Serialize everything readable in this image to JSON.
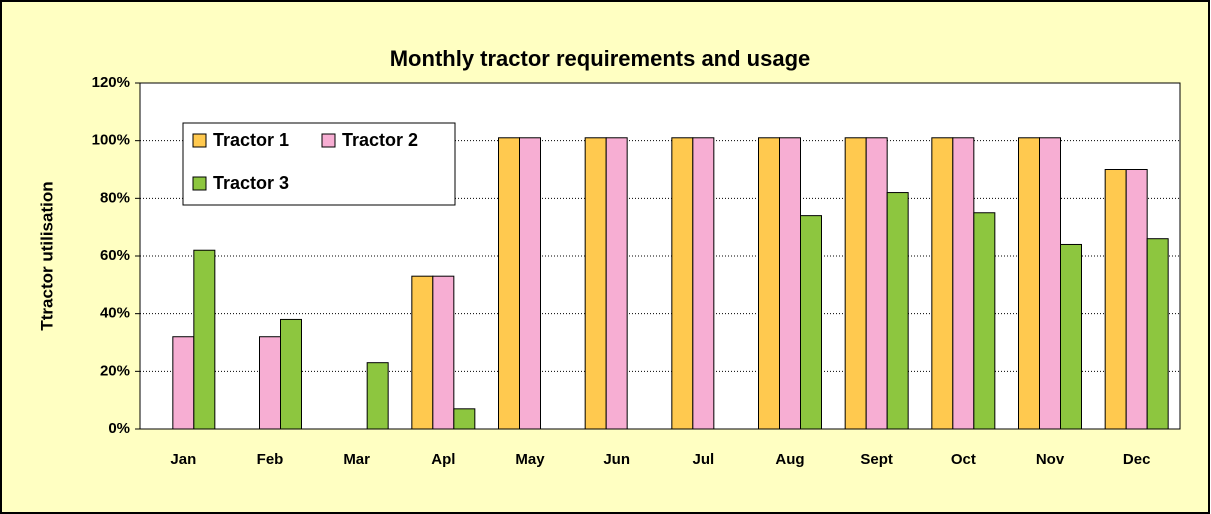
{
  "chart_data": {
    "type": "bar",
    "title": "Monthly tractor requirements and usage",
    "y_label": "Ttractor utilisation",
    "categories": [
      "Jan",
      "Feb",
      "Mar",
      "Apl",
      "May",
      "Jun",
      "Jul",
      "Aug",
      "Sept",
      "Oct",
      "Nov",
      "Dec"
    ],
    "series": [
      {
        "name": "Tractor 1",
        "color": "#ffc94f",
        "values": [
          0,
          0,
          0,
          53,
          101,
          101,
          101,
          101,
          101,
          101,
          101,
          90
        ]
      },
      {
        "name": "Tractor 2",
        "color": "#f7aed3",
        "values": [
          32,
          32,
          0,
          53,
          101,
          101,
          101,
          101,
          101,
          101,
          101,
          90
        ]
      },
      {
        "name": "Tractor 3",
        "color": "#8dc63f",
        "values": [
          62,
          38,
          23,
          7,
          0,
          0,
          0,
          74,
          82,
          75,
          64,
          66
        ]
      }
    ],
    "ylim": [
      0,
      120
    ],
    "yticks": [
      {
        "value": 0,
        "label": "0%"
      },
      {
        "value": 20,
        "label": "20%"
      },
      {
        "value": 40,
        "label": "40%"
      },
      {
        "value": 60,
        "label": "60%"
      },
      {
        "value": 80,
        "label": "80%"
      },
      {
        "value": 100,
        "label": "100%"
      },
      {
        "value": 120,
        "label": "120%"
      }
    ],
    "grid": true,
    "legend": "upper left"
  }
}
